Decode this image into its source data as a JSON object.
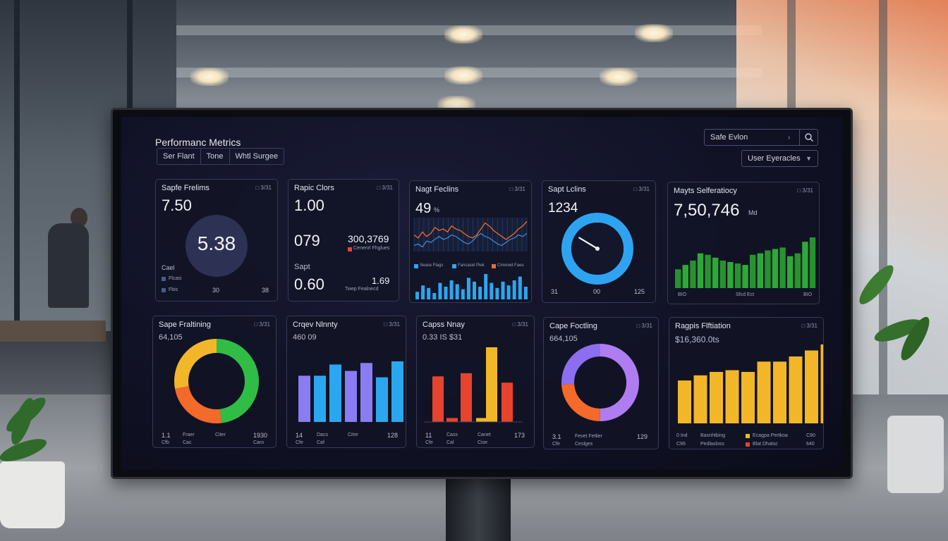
{
  "app": {
    "title": "Performanc Metrics",
    "tabs": [
      "Ser Flant",
      "Tone",
      "Whtl Surgee"
    ],
    "search_value": "Safe Evlon",
    "dropdown_value": "User Eyeracles"
  },
  "colors": {
    "screen_bg": "#111226",
    "card_border": "#363a55",
    "blue": "#2ba7f0",
    "green": "#2fa83a",
    "yellow": "#f2b728",
    "red": "#e8432f",
    "purple": "#9b7cf2",
    "orange": "#f36a2a"
  },
  "icons": [
    "search-icon",
    "chevron-right-icon",
    "chevron-down-icon"
  ],
  "cards": {
    "c1": {
      "title": "Sapfe Frelims",
      "meta": "□ 3/31",
      "value": "7.50",
      "donut_value": "5.38",
      "label": "Cael",
      "legend": [
        "Flcasi",
        "Fbis"
      ],
      "footer": [
        "30",
        "38"
      ]
    },
    "c2": {
      "title": "Rapic Clors",
      "meta": "□ 3/31",
      "value": "1.00",
      "value2": "079",
      "value3": "300,3769",
      "legend": "Cenenrl Fhglues",
      "label": "Sapt",
      "value4": "0.60",
      "value5": "1.69",
      "sub": "Twep Fealnecd"
    },
    "c3": {
      "title": "Nagt Feclins",
      "meta": "□ 3/31",
      "value": "49",
      "unit": "%",
      "legend": [
        "Sease Flags",
        "Fancasel Piek",
        "Cmerwd Faeu"
      ]
    },
    "c4": {
      "title": "Sapt Lclins",
      "meta": "□ 3/31",
      "value": "1234",
      "footer": [
        "31",
        "00",
        "125"
      ],
      "gauge_fraction": 0.88
    },
    "c5": {
      "title": "Mayts Selferatiocy",
      "meta": "□ 3/31",
      "value": "7,50,746",
      "unit": "Md",
      "footer": [
        "BIO",
        "Sfcd Ect",
        "BIO"
      ]
    },
    "c6": {
      "title": "Sape Fraltining",
      "meta": "□ 3/31",
      "value": "64,105",
      "footer": [
        "1.1",
        "Fraer",
        "Citer",
        "1930"
      ],
      "footer2": [
        "Cfb",
        "Cac",
        "Caro"
      ]
    },
    "c7": {
      "title": "Crqev Nlnnty",
      "meta": "□ 3/31",
      "value": "460 09",
      "footer": [
        "14",
        "Dacs",
        "Citre",
        "128"
      ],
      "footer2": [
        "Cfe",
        "Caf"
      ]
    },
    "c8": {
      "title": "Capss Nnay",
      "meta": "□ 3/31",
      "value": "0.33 IS $31",
      "footer": [
        "11",
        "Cass",
        "Canet",
        "173"
      ],
      "footer2": [
        "Cfe",
        "Cal",
        "Cise"
      ]
    },
    "c9": {
      "title": "Cape Foctling",
      "meta": "□ 3/31",
      "value": "664,105",
      "footer": [
        "3.1",
        "Fevet Fetlier",
        "129"
      ],
      "footer2": [
        "Cfe",
        "Ceslges"
      ]
    },
    "c10": {
      "title": "Ragpis Flftiation",
      "meta": "□ 3/31",
      "value": "$16,360.0ts",
      "footer": [
        "0 Ind",
        "Basnhtbing",
        "Ecagpa Pertkoa",
        "C90"
      ],
      "footer2": [
        "C96",
        "Pedlasloss",
        "Blat Dhatsc",
        "640"
      ]
    }
  },
  "chart_data": [
    {
      "type": "line",
      "name": "Nagt Feclins",
      "series": [
        {
          "values": [
            62,
            58,
            66,
            60,
            64,
            72,
            68,
            70,
            66,
            74,
            70,
            68,
            64,
            60,
            58,
            62,
            70,
            78,
            74,
            68,
            64,
            60,
            56,
            60,
            64,
            70,
            74,
            80
          ]
        },
        {
          "values": [
            48,
            50,
            46,
            54,
            52,
            56,
            60,
            56,
            58,
            62,
            60,
            56,
            52,
            50,
            54,
            60,
            64,
            60,
            58,
            54,
            50,
            48,
            52,
            56,
            58,
            62,
            60,
            64
          ]
        }
      ]
    },
    {
      "type": "bar",
      "name": "Nagt Feclins bars",
      "values": [
        12,
        22,
        18,
        10,
        26,
        20,
        30,
        24,
        16,
        34,
        28,
        20,
        40,
        26,
        18,
        28,
        22,
        30,
        36,
        20
      ]
    },
    {
      "type": "bar",
      "name": "Mayts Selferatiocy",
      "values": [
        26,
        32,
        38,
        48,
        46,
        42,
        38,
        36,
        34,
        32,
        46,
        48,
        52,
        54,
        56,
        44,
        48,
        64,
        70
      ]
    },
    {
      "type": "pie",
      "name": "Sape Fraltining",
      "slices": [
        {
          "label": "green",
          "value": 48
        },
        {
          "label": "orange",
          "value": 24
        },
        {
          "label": "yellow",
          "value": 28
        }
      ]
    },
    {
      "type": "bar",
      "name": "Crqev Nlnnty",
      "values": [
        58,
        58,
        72,
        64,
        74,
        56,
        76
      ]
    },
    {
      "type": "bar",
      "name": "Capss Nnay",
      "values": [
        58,
        5,
        62,
        5,
        95,
        50
      ]
    },
    {
      "type": "pie",
      "name": "Cape Foctling",
      "slices": [
        {
          "label": "purple",
          "value": 50
        },
        {
          "label": "orange",
          "value": 24
        },
        {
          "label": "violet",
          "value": 26
        }
      ]
    },
    {
      "type": "bar",
      "name": "Ragpis Flftiation",
      "values": [
        50,
        56,
        60,
        62,
        60,
        72,
        72,
        78,
        85,
        92
      ]
    }
  ]
}
